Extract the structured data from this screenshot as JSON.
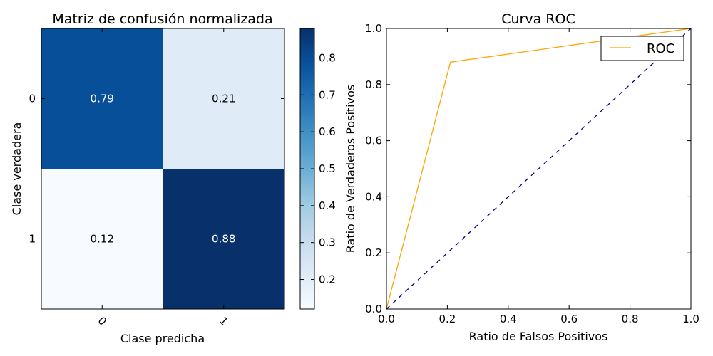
{
  "chart_data": [
    {
      "type": "heatmap",
      "title": "Matriz de confusión normalizada",
      "xlabel": "Clase predicha",
      "ylabel": "Clase verdadera",
      "x_categories": [
        "0",
        "1"
      ],
      "y_categories": [
        "0",
        "1"
      ],
      "values": [
        [
          0.79,
          0.21
        ],
        [
          0.12,
          0.88
        ]
      ],
      "cell_labels": [
        [
          "0.79",
          "0.21"
        ],
        [
          "0.12",
          "0.88"
        ]
      ],
      "colormap": "Blues",
      "color_range": [
        0.12,
        0.88
      ],
      "colorbar_ticks": [
        "0.2",
        "0.3",
        "0.4",
        "0.5",
        "0.6",
        "0.7",
        "0.8"
      ]
    },
    {
      "type": "line",
      "title": "Curva ROC",
      "xlabel": "Ratio de Falsos Positivos",
      "ylabel": "Ratio de Verdaderos Positivos",
      "xlim": [
        0.0,
        1.0
      ],
      "ylim": [
        0.0,
        1.0
      ],
      "x_ticks": [
        "0.0",
        "0.2",
        "0.4",
        "0.6",
        "0.8",
        "1.0"
      ],
      "y_ticks": [
        "0.0",
        "0.2",
        "0.4",
        "0.6",
        "0.8",
        "1.0"
      ],
      "series": [
        {
          "name": "ROC",
          "x": [
            0.0,
            0.21,
            1.0
          ],
          "y": [
            0.0,
            0.88,
            1.0
          ],
          "color": "#ffa500",
          "style": "solid"
        },
        {
          "x": [
            0.0,
            1.0
          ],
          "y": [
            0.0,
            1.0
          ],
          "color": "#000080",
          "style": "dashed"
        }
      ],
      "legend": {
        "entries": [
          "ROC"
        ],
        "position": "upper right"
      }
    }
  ]
}
